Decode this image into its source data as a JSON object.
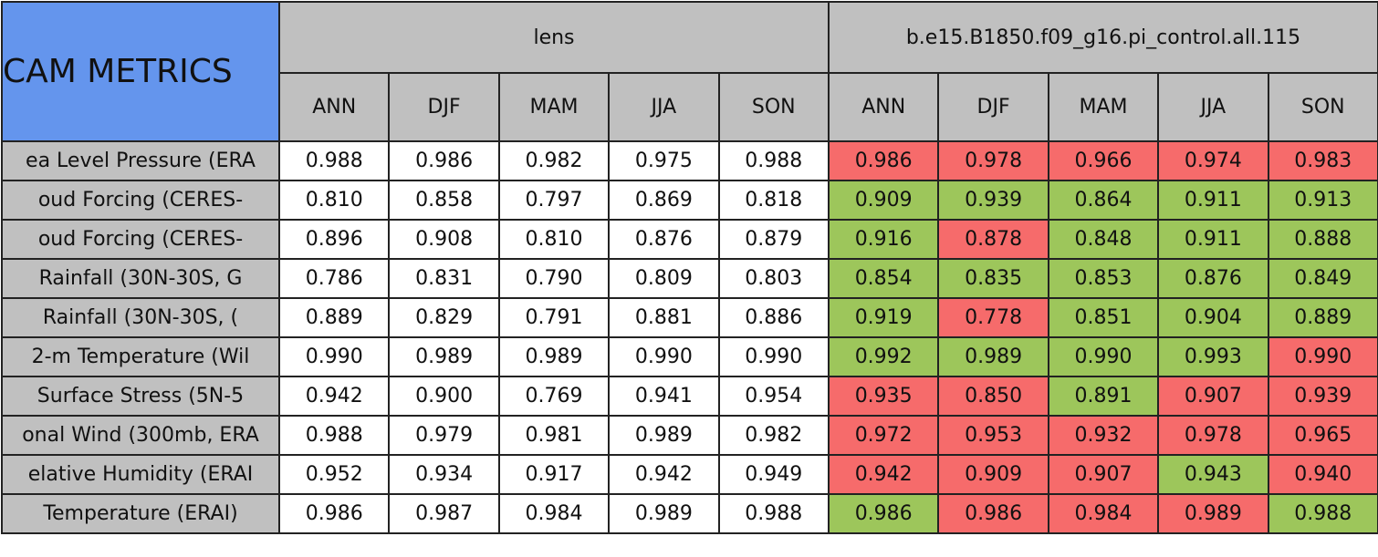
{
  "header": {
    "title": "CAM METRICS",
    "groups": [
      {
        "name": "lens",
        "seasons": [
          "ANN",
          "DJF",
          "MAM",
          "JJA",
          "SON"
        ]
      },
      {
        "name": "b.e15.B1850.f09_g16.pi_control.all.115",
        "seasons": [
          "ANN",
          "DJF",
          "MAM",
          "JJA",
          "SON"
        ]
      }
    ]
  },
  "rows": [
    {
      "label": "ea Level Pressure (ERA",
      "values": [
        "0.988",
        "0.986",
        "0.982",
        "0.975",
        "0.988",
        "0.986",
        "0.978",
        "0.966",
        "0.974",
        "0.983"
      ],
      "colors": [
        "#ffffff",
        "#ffffff",
        "#ffffff",
        "#ffffff",
        "#ffffff",
        "#f66b6b",
        "#f66b6b",
        "#f66b6b",
        "#f66b6b",
        "#f66b6b"
      ]
    },
    {
      "label": "oud Forcing (CERES-",
      "values": [
        "0.810",
        "0.858",
        "0.797",
        "0.869",
        "0.818",
        "0.909",
        "0.939",
        "0.864",
        "0.911",
        "0.913"
      ],
      "colors": [
        "#ffffff",
        "#ffffff",
        "#ffffff",
        "#ffffff",
        "#ffffff",
        "#9dc65b",
        "#9dc65b",
        "#9dc65b",
        "#9dc65b",
        "#9dc65b"
      ]
    },
    {
      "label": "oud Forcing (CERES-",
      "values": [
        "0.896",
        "0.908",
        "0.810",
        "0.876",
        "0.879",
        "0.916",
        "0.878",
        "0.848",
        "0.911",
        "0.888"
      ],
      "colors": [
        "#ffffff",
        "#ffffff",
        "#ffffff",
        "#ffffff",
        "#ffffff",
        "#9dc65b",
        "#f66b6b",
        "#9dc65b",
        "#9dc65b",
        "#9dc65b"
      ]
    },
    {
      "label": "Rainfall (30N-30S, G",
      "values": [
        "0.786",
        "0.831",
        "0.790",
        "0.809",
        "0.803",
        "0.854",
        "0.835",
        "0.853",
        "0.876",
        "0.849"
      ],
      "colors": [
        "#ffffff",
        "#ffffff",
        "#ffffff",
        "#ffffff",
        "#ffffff",
        "#9dc65b",
        "#9dc65b",
        "#9dc65b",
        "#9dc65b",
        "#9dc65b"
      ]
    },
    {
      "label": "Rainfall (30N-30S, (",
      "values": [
        "0.889",
        "0.829",
        "0.791",
        "0.881",
        "0.886",
        "0.919",
        "0.778",
        "0.851",
        "0.904",
        "0.889"
      ],
      "colors": [
        "#ffffff",
        "#ffffff",
        "#ffffff",
        "#ffffff",
        "#ffffff",
        "#9dc65b",
        "#f66b6b",
        "#9dc65b",
        "#9dc65b",
        "#9dc65b"
      ]
    },
    {
      "label": "2-m Temperature (Wil",
      "values": [
        "0.990",
        "0.989",
        "0.989",
        "0.990",
        "0.990",
        "0.992",
        "0.989",
        "0.990",
        "0.993",
        "0.990"
      ],
      "colors": [
        "#ffffff",
        "#ffffff",
        "#ffffff",
        "#ffffff",
        "#ffffff",
        "#9dc65b",
        "#9dc65b",
        "#9dc65b",
        "#9dc65b",
        "#f66b6b"
      ]
    },
    {
      "label": "Surface Stress (5N-5",
      "values": [
        "0.942",
        "0.900",
        "0.769",
        "0.941",
        "0.954",
        "0.935",
        "0.850",
        "0.891",
        "0.907",
        "0.939"
      ],
      "colors": [
        "#ffffff",
        "#ffffff",
        "#ffffff",
        "#ffffff",
        "#ffffff",
        "#f66b6b",
        "#f66b6b",
        "#9dc65b",
        "#f66b6b",
        "#f66b6b"
      ]
    },
    {
      "label": "onal Wind (300mb, ERA",
      "values": [
        "0.988",
        "0.979",
        "0.981",
        "0.989",
        "0.982",
        "0.972",
        "0.953",
        "0.932",
        "0.978",
        "0.965"
      ],
      "colors": [
        "#ffffff",
        "#ffffff",
        "#ffffff",
        "#ffffff",
        "#ffffff",
        "#f66b6b",
        "#f66b6b",
        "#f66b6b",
        "#f66b6b",
        "#f66b6b"
      ]
    },
    {
      "label": "elative Humidity (ERAI",
      "values": [
        "0.952",
        "0.934",
        "0.917",
        "0.942",
        "0.949",
        "0.942",
        "0.909",
        "0.907",
        "0.943",
        "0.940"
      ],
      "colors": [
        "#ffffff",
        "#ffffff",
        "#ffffff",
        "#ffffff",
        "#ffffff",
        "#f66b6b",
        "#f66b6b",
        "#f66b6b",
        "#9dc65b",
        "#f66b6b"
      ]
    },
    {
      "label": "Temperature (ERAI)",
      "values": [
        "0.986",
        "0.987",
        "0.984",
        "0.989",
        "0.988",
        "0.986",
        "0.986",
        "0.984",
        "0.989",
        "0.988"
      ],
      "colors": [
        "#ffffff",
        "#ffffff",
        "#ffffff",
        "#ffffff",
        "#ffffff",
        "#9dc65b",
        "#f66b6b",
        "#f66b6b",
        "#f66b6b",
        "#9dc65b"
      ]
    }
  ]
}
